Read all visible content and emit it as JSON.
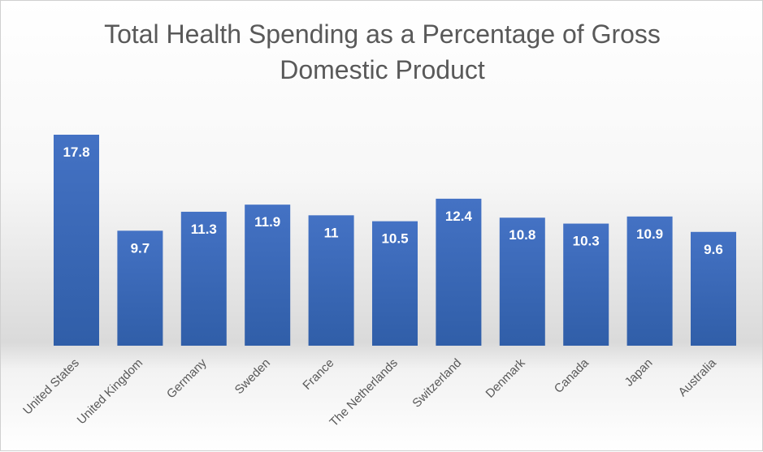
{
  "chart_data": {
    "type": "bar",
    "title": "Total Health Spending as a Percentage of Gross Domestic Product",
    "title_lines": [
      "Total Health Spending as a Percentage of Gross",
      "Domestic Product"
    ],
    "categories": [
      "United States",
      "United Kingdom",
      "Germany",
      "Sweden",
      "France",
      "The Netherlands",
      "Switzerland",
      "Denmark",
      "Canada",
      "Japan",
      "Australia"
    ],
    "values": [
      17.8,
      9.7,
      11.3,
      11.9,
      11,
      10.5,
      12.4,
      10.8,
      10.3,
      10.9,
      9.6
    ],
    "data_labels": [
      "17.8",
      "9.7",
      "11.3",
      "11.9",
      "11",
      "10.5",
      "12.4",
      "10.8",
      "10.3",
      "10.9",
      "9.6"
    ],
    "xlabel": "",
    "ylabel": "",
    "ylim": [
      0,
      20
    ],
    "grid": false,
    "legend": "none",
    "colors": {
      "bar": "#4472c4",
      "bar_dark": "#305ea8",
      "text": "#595959",
      "label": "#ffffff"
    }
  }
}
